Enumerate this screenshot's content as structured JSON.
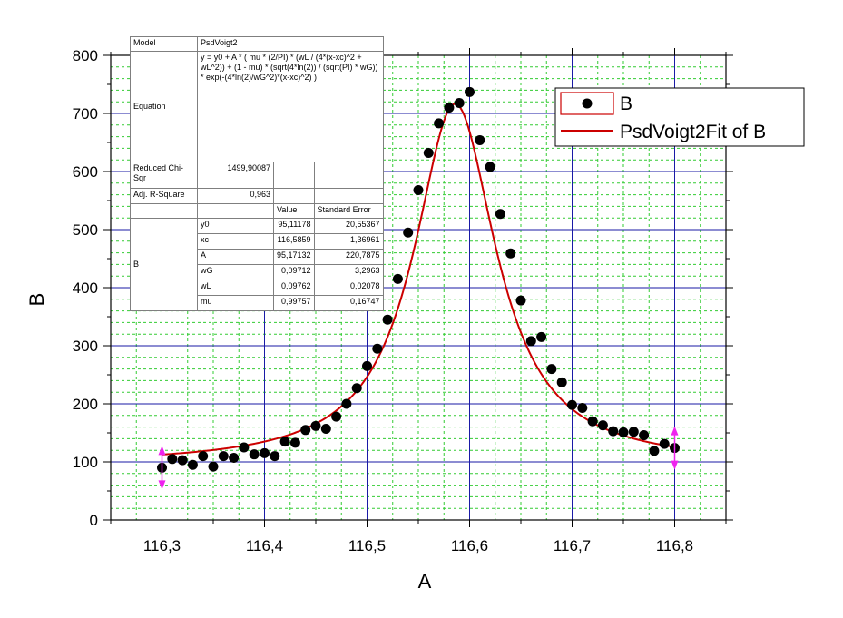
{
  "chart_data": {
    "type": "scatter",
    "xlabel": "A",
    "ylabel": "B",
    "xlim": [
      116.25,
      116.85
    ],
    "ylim": [
      0,
      800
    ],
    "xticks": [
      "116,3",
      "116,4",
      "116,5",
      "116,6",
      "116,7",
      "116,8"
    ],
    "yticks": [
      "0",
      "100",
      "200",
      "300",
      "400",
      "500",
      "600",
      "700",
      "800"
    ],
    "grid": true,
    "legend_position": "top-right",
    "legend": [
      "B",
      "PsdVoigt2Fit of B"
    ],
    "colors": {
      "points": "#000000",
      "fit": "#cc0000",
      "major_grid": "#1a1aa6",
      "minor_grid": "#33cc33",
      "markers": "#ee22ee"
    },
    "series": [
      {
        "name": "B",
        "kind": "scatter",
        "x": [
          116.3,
          116.31,
          116.32,
          116.33,
          116.34,
          116.35,
          116.36,
          116.37,
          116.38,
          116.39,
          116.4,
          116.41,
          116.42,
          116.43,
          116.44,
          116.45,
          116.46,
          116.47,
          116.48,
          116.49,
          116.5,
          116.51,
          116.52,
          116.53,
          116.54,
          116.55,
          116.56,
          116.57,
          116.58,
          116.59,
          116.6,
          116.61,
          116.62,
          116.63,
          116.64,
          116.65,
          116.66,
          116.67,
          116.68,
          116.69,
          116.7,
          116.71,
          116.72,
          116.73,
          116.74,
          116.75,
          116.76,
          116.77,
          116.78,
          116.79,
          116.8
        ],
        "y": [
          90,
          105,
          103,
          95,
          110,
          92,
          110,
          107,
          125,
          113,
          115,
          110,
          135,
          133,
          155,
          162,
          157,
          178,
          200,
          227,
          265,
          295,
          345,
          415,
          495,
          568,
          632,
          683,
          710,
          718,
          737,
          654,
          608,
          527,
          459,
          378,
          308,
          315,
          260,
          237,
          198,
          193,
          170,
          163,
          153,
          151,
          152,
          146,
          119,
          131,
          124
        ]
      },
      {
        "name": "PsdVoigt2Fit of B",
        "kind": "line",
        "model": "pseudo-voigt",
        "params": {
          "y0": 95.11178,
          "xc": 116.5859,
          "A": 95.17132,
          "wG": 0.09712,
          "wL": 0.09762,
          "mu": 0.99757
        },
        "x_range": [
          116.3,
          116.8
        ]
      }
    ],
    "annotations": [
      "range-marker-left-116.3",
      "range-marker-right-116.8"
    ]
  },
  "fit_table": {
    "model_label": "Model",
    "model_value": "PsdVoigt2",
    "equation_label": "Equation",
    "equation_value": "y = y0 + A * ( mu * (2/PI) * (wL / (4*(x-xc)^2 + wL^2)) + (1 - mu) * (sqrt(4*ln(2)) / (sqrt(PI) * wG)) * exp(-(4*ln(2)/wG^2)*(x-xc)^2) )",
    "chi_label": "Reduced Chi-Sqr",
    "chi_value": "1499,90087",
    "r2_label": "Adj. R-Square",
    "r2_value": "0,963",
    "value_header": "Value",
    "error_header": "Standard Error",
    "group_label": "B",
    "params": [
      {
        "name": "y0",
        "value": "95,11178",
        "error": "20,55367"
      },
      {
        "name": "xc",
        "value": "116,5859",
        "error": "1,36961"
      },
      {
        "name": "A",
        "value": "95,17132",
        "error": "220,7875"
      },
      {
        "name": "wG",
        "value": "0,09712",
        "error": "3,2963"
      },
      {
        "name": "wL",
        "value": "0,09762",
        "error": "0,02078"
      },
      {
        "name": "mu",
        "value": "0,99757",
        "error": "0,16747"
      }
    ]
  }
}
